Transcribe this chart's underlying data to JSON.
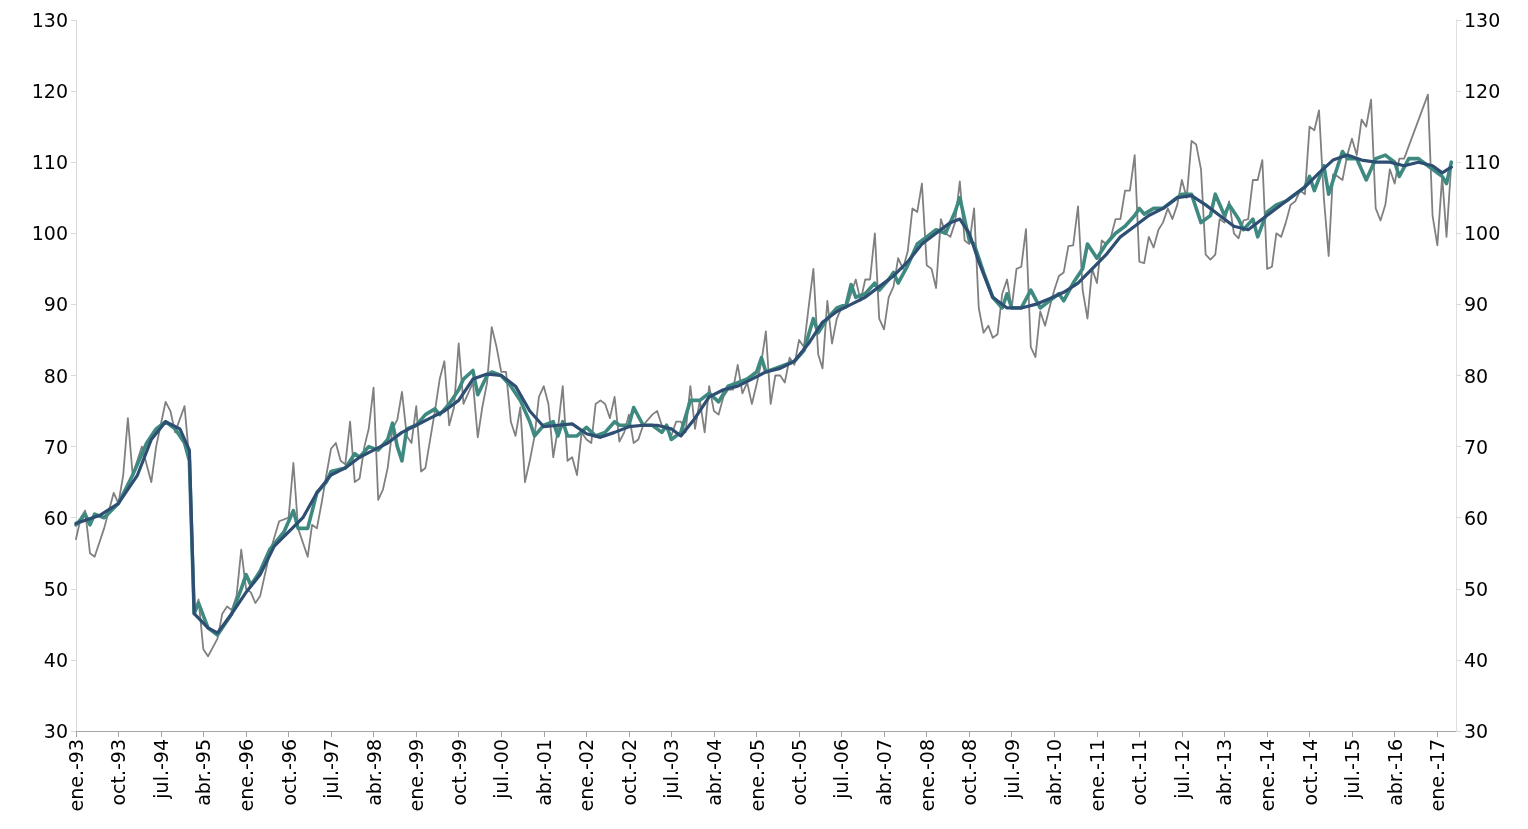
{
  "chart_data": {
    "type": "line",
    "xlim": [
      "1993-01",
      "2017-05"
    ],
    "ylim": [
      30,
      130
    ],
    "yticks": [
      30,
      40,
      50,
      60,
      70,
      80,
      90,
      100,
      110,
      120,
      130
    ],
    "y2lim": [
      30,
      130
    ],
    "y2ticks": [
      30,
      40,
      50,
      60,
      70,
      80,
      90,
      100,
      110,
      120,
      130
    ],
    "grid": false,
    "xticks": [
      {
        "value": "1993-01",
        "label": "ene.-93"
      },
      {
        "value": "1993-10",
        "label": "oct.-93"
      },
      {
        "value": "1994-07",
        "label": "jul.-94"
      },
      {
        "value": "1995-04",
        "label": "abr.-95"
      },
      {
        "value": "1996-01",
        "label": "ene.-96"
      },
      {
        "value": "1996-10",
        "label": "oct.-96"
      },
      {
        "value": "1997-07",
        "label": "jul.-97"
      },
      {
        "value": "1998-04",
        "label": "abr.-98"
      },
      {
        "value": "1999-01",
        "label": "ene.-99"
      },
      {
        "value": "1999-10",
        "label": "oct.-99"
      },
      {
        "value": "2000-07",
        "label": "jul.-00"
      },
      {
        "value": "2001-04",
        "label": "abr.-01"
      },
      {
        "value": "2002-01",
        "label": "ene.-02"
      },
      {
        "value": "2002-10",
        "label": "oct.-02"
      },
      {
        "value": "2003-07",
        "label": "jul.-03"
      },
      {
        "value": "2004-04",
        "label": "abr.-04"
      },
      {
        "value": "2005-01",
        "label": "ene.-05"
      },
      {
        "value": "2005-10",
        "label": "oct.-05"
      },
      {
        "value": "2006-07",
        "label": "jul.-06"
      },
      {
        "value": "2007-04",
        "label": "abr.-07"
      },
      {
        "value": "2008-01",
        "label": "ene.-08"
      },
      {
        "value": "2008-10",
        "label": "oct.-08"
      },
      {
        "value": "2009-07",
        "label": "jul.-09"
      },
      {
        "value": "2010-04",
        "label": "abr.-10"
      },
      {
        "value": "2011-01",
        "label": "ene.-11"
      },
      {
        "value": "2011-10",
        "label": "oct.-11"
      },
      {
        "value": "2012-07",
        "label": "jul.-12"
      },
      {
        "value": "2013-04",
        "label": "abr.-13"
      },
      {
        "value": "2014-01",
        "label": "ene.-14"
      },
      {
        "value": "2014-10",
        "label": "oct.-14"
      },
      {
        "value": "2015-07",
        "label": "jul.-15"
      },
      {
        "value": "2016-04",
        "label": "abr.-16"
      },
      {
        "value": "2017-01",
        "label": "ene.-17"
      }
    ],
    "series": [
      {
        "color": "#808080",
        "x": [
          "1993-01",
          "1993-02",
          "1993-03",
          "1993-04",
          "1993-05",
          "1993-07",
          "1993-09",
          "1993-10",
          "1993-11",
          "1993-12",
          "1994-01",
          "1994-03",
          "1994-05",
          "1994-06",
          "1994-08",
          "1994-09",
          "1994-10",
          "1994-12",
          "1995-01",
          "1995-02",
          "1995-03",
          "1995-04",
          "1995-05",
          "1995-07",
          "1995-08",
          "1995-09",
          "1995-10",
          "1995-11",
          "1995-12",
          "1996-01",
          "1996-02",
          "1996-03",
          "1996-04",
          "1996-06",
          "1996-08",
          "1996-10",
          "1996-11",
          "1996-12",
          "1997-02",
          "1997-03",
          "1997-04",
          "1997-05",
          "1997-06",
          "1997-07",
          "1997-08",
          "1997-09",
          "1997-10",
          "1997-11",
          "1997-12",
          "1998-01",
          "1998-02",
          "1998-03",
          "1998-04",
          "1998-05",
          "1998-06",
          "1998-07",
          "1998-08",
          "1998-09",
          "1998-10",
          "1998-11",
          "1998-12",
          "1999-01",
          "1999-02",
          "1999-03",
          "1999-05",
          "1999-06",
          "1999-07",
          "1999-08",
          "1999-09",
          "1999-10",
          "1999-11",
          "2000-01",
          "2000-02",
          "2000-03",
          "2000-04",
          "2000-05",
          "2000-06",
          "2000-07",
          "2000-08",
          "2000-09",
          "2000-10",
          "2000-11",
          "2000-12",
          "2001-01",
          "2001-02",
          "2001-03",
          "2001-04",
          "2001-05",
          "2001-06",
          "2001-07",
          "2001-08",
          "2001-09",
          "2001-10",
          "2001-11",
          "2001-12",
          "2002-01",
          "2002-02",
          "2002-03",
          "2002-04",
          "2002-05",
          "2002-06",
          "2002-07",
          "2002-08",
          "2002-09",
          "2002-10",
          "2002-11",
          "2002-12",
          "2003-01",
          "2003-03",
          "2003-04",
          "2003-05",
          "2003-06",
          "2003-07",
          "2003-08",
          "2003-09",
          "2003-10",
          "2003-11",
          "2003-12",
          "2004-01",
          "2004-02",
          "2004-03",
          "2004-04",
          "2004-05",
          "2004-06",
          "2004-07",
          "2004-08",
          "2004-09",
          "2004-10",
          "2004-11",
          "2004-12",
          "2005-01",
          "2005-02",
          "2005-03",
          "2005-04",
          "2005-05",
          "2005-06",
          "2005-07",
          "2005-08",
          "2005-09",
          "2005-10",
          "2005-11",
          "2005-12",
          "2006-01",
          "2006-02",
          "2006-03",
          "2006-04",
          "2006-05",
          "2006-06",
          "2006-07",
          "2006-08",
          "2006-09",
          "2006-10",
          "2006-11",
          "2006-12",
          "2007-01",
          "2007-02",
          "2007-03",
          "2007-04",
          "2007-05",
          "2007-06",
          "2007-07",
          "2007-08",
          "2007-09",
          "2007-10",
          "2007-11",
          "2007-12",
          "2008-01",
          "2008-02",
          "2008-03",
          "2008-04",
          "2008-05",
          "2008-06",
          "2008-07",
          "2008-08",
          "2008-09",
          "2008-10",
          "2008-11",
          "2008-12",
          "2009-01",
          "2009-02",
          "2009-03",
          "2009-04",
          "2009-05",
          "2009-06",
          "2009-07",
          "2009-08",
          "2009-09",
          "2009-10",
          "2009-11",
          "2009-12",
          "2010-01",
          "2010-02",
          "2010-03",
          "2010-04",
          "2010-05",
          "2010-06",
          "2010-07",
          "2010-08",
          "2010-09",
          "2010-10",
          "2010-11",
          "2010-12",
          "2011-01",
          "2011-02",
          "2011-03",
          "2011-04",
          "2011-05",
          "2011-06",
          "2011-07",
          "2011-08",
          "2011-09",
          "2011-10",
          "2011-11",
          "2011-12",
          "2012-01",
          "2012-02",
          "2012-03",
          "2012-04",
          "2012-05",
          "2012-06",
          "2012-07",
          "2012-08",
          "2012-09",
          "2012-10",
          "2012-11",
          "2012-12",
          "2013-01",
          "2013-02",
          "2013-03",
          "2013-04",
          "2013-05",
          "2013-06",
          "2013-07",
          "2013-08",
          "2013-09",
          "2013-10",
          "2013-11",
          "2013-12",
          "2014-01",
          "2014-02",
          "2014-03",
          "2014-04",
          "2014-05",
          "2014-06",
          "2014-07",
          "2014-08",
          "2014-09",
          "2014-10",
          "2014-11",
          "2014-12",
          "2015-01",
          "2015-02",
          "2015-03",
          "2015-04",
          "2015-05",
          "2015-06",
          "2015-07",
          "2015-08",
          "2015-09",
          "2015-10",
          "2015-11",
          "2015-12",
          "2016-01",
          "2016-02",
          "2016-03",
          "2016-04",
          "2016-05",
          "2016-06",
          "2016-11",
          "2016-12",
          "2017-01",
          "2017-02",
          "2017-03",
          "2017-04"
        ],
        "values": [
          57,
          60,
          61,
          55,
          54.5,
          58.5,
          63.5,
          62,
          66,
          74,
          66,
          70,
          65,
          70,
          76.3,
          75,
          72,
          75.7,
          68,
          46.5,
          48.5,
          41.5,
          40.5,
          43,
          46.5,
          47.5,
          47,
          49,
          55.5,
          50,
          49.5,
          48,
          49,
          55,
          59.5,
          60,
          67.7,
          58.5,
          54.5,
          59,
          58.5,
          62,
          66,
          69.7,
          70.5,
          68,
          67.5,
          73.5,
          65,
          65.5,
          70,
          72.5,
          78.3,
          62.5,
          64,
          67,
          72.5,
          73.8,
          77.7,
          71.5,
          70.5,
          75.7,
          66.5,
          67,
          75,
          79.5,
          82,
          73,
          75.5,
          84.5,
          76,
          79,
          71.3,
          75.5,
          79,
          86.8,
          84,
          80.5,
          80.5,
          73.5,
          71.5,
          75.5,
          65,
          68,
          71.5,
          77,
          78.5,
          76,
          68.5,
          72.5,
          78.5,
          68,
          68.5,
          66,
          72,
          71,
          70.5,
          76,
          76.5,
          76,
          74,
          77,
          70.7,
          72,
          74.5,
          70.5,
          71,
          73,
          74.5,
          75,
          73,
          72.5,
          71.5,
          73.5,
          73.5,
          72,
          78.5,
          72.5,
          76.5,
          72,
          78.5,
          75,
          74.5,
          77,
          78,
          78,
          81.5,
          77.5,
          79,
          76,
          78.8,
          82,
          86.2,
          76,
          80,
          80,
          79,
          82.5,
          81.5,
          85,
          84,
          89.5,
          95,
          83,
          81,
          90.5,
          84.5,
          88,
          89.5,
          89.5,
          91.5,
          93.5,
          90.5,
          93.5,
          93.5,
          100,
          88,
          86.5,
          91,
          92.5,
          96.5,
          95,
          97.5,
          103.5,
          103,
          107,
          95.5,
          95,
          92.3,
          102,
          100,
          99.5,
          101.5,
          107.3,
          99,
          98.5,
          103.5,
          89.5,
          86,
          87,
          85.3,
          85.8,
          91.5,
          93.5,
          89.5,
          95,
          95.3,
          100.6,
          84,
          82.6,
          89,
          87,
          89.5,
          92,
          94,
          94.5,
          98.2,
          98.3,
          103.8,
          92,
          88,
          95,
          93,
          99,
          98.5,
          99.5,
          102,
          102,
          106,
          106,
          111,
          96,
          95.8,
          99.5,
          98,
          100.5,
          101.5,
          103.5,
          102,
          104,
          107.5,
          105,
          113,
          112.5,
          109,
          97,
          96.3,
          97,
          102,
          101.5,
          104.5,
          100,
          99.3,
          101.8,
          102,
          107.5,
          107.5,
          110.3,
          95,
          95.3,
          100,
          99.5,
          101.5,
          104,
          104.5,
          106,
          105.5,
          115,
          114.5,
          117.3,
          105,
          96.8,
          108.3,
          108,
          107.5,
          111,
          113.3,
          111,
          116,
          115,
          118.8,
          103.5,
          101.8,
          104,
          109,
          107,
          110.5,
          110.5,
          119.5,
          102.5,
          98.3,
          108,
          99.5,
          110
        ]
      },
      {
        "color": "#3f8a80",
        "x": [
          "1993-01",
          "1993-03",
          "1993-04",
          "1993-05",
          "1993-07",
          "1993-10",
          "1994-01",
          "1994-04",
          "1994-06",
          "1994-08",
          "1994-10",
          "1994-12",
          "1995-01",
          "1995-02",
          "1995-03",
          "1995-05",
          "1995-07",
          "1995-10",
          "1995-12",
          "1996-01",
          "1996-02",
          "1996-04",
          "1996-06",
          "1996-09",
          "1996-11",
          "1996-12",
          "1997-02",
          "1997-04",
          "1997-06",
          "1997-07",
          "1997-10",
          "1997-12",
          "1998-01",
          "1998-03",
          "1998-05",
          "1998-07",
          "1998-08",
          "1998-09",
          "1998-10",
          "1998-11",
          "1999-01",
          "1999-03",
          "1999-05",
          "1999-06",
          "1999-08",
          "1999-10",
          "1999-11",
          "2000-01",
          "2000-02",
          "2000-04",
          "2000-05",
          "2000-07",
          "2000-09",
          "2000-11",
          "2001-01",
          "2001-02",
          "2001-04",
          "2001-06",
          "2001-07",
          "2001-08",
          "2001-09",
          "2001-11",
          "2002-01",
          "2002-03",
          "2002-05",
          "2002-07",
          "2002-08",
          "2002-10",
          "2002-11",
          "2003-01",
          "2003-03",
          "2003-05",
          "2003-06",
          "2003-07",
          "2003-09",
          "2003-11",
          "2004-01",
          "2004-03",
          "2004-05",
          "2004-07",
          "2004-09",
          "2004-11",
          "2005-01",
          "2005-02",
          "2005-03",
          "2005-05",
          "2005-07",
          "2005-09",
          "2005-11",
          "2006-01",
          "2006-02",
          "2006-04",
          "2006-06",
          "2006-08",
          "2006-09",
          "2006-10",
          "2006-12",
          "2007-02",
          "2007-03",
          "2007-05",
          "2007-06",
          "2007-07",
          "2007-09",
          "2007-11",
          "2008-01",
          "2008-03",
          "2008-05",
          "2008-07",
          "2008-08",
          "2008-10",
          "2008-11",
          "2009-01",
          "2009-03",
          "2009-05",
          "2009-06",
          "2009-07",
          "2009-09",
          "2009-11",
          "2010-01",
          "2010-03",
          "2010-05",
          "2010-06",
          "2010-08",
          "2010-10",
          "2010-11",
          "2011-01",
          "2011-03",
          "2011-05",
          "2011-07",
          "2011-09",
          "2011-10",
          "2011-11",
          "2012-01",
          "2012-03",
          "2012-05",
          "2012-07",
          "2012-09",
          "2012-11",
          "2013-01",
          "2013-02",
          "2013-04",
          "2013-05",
          "2013-07",
          "2013-08",
          "2013-10",
          "2013-11",
          "2014-01",
          "2014-03",
          "2014-05",
          "2014-07",
          "2014-09",
          "2014-10",
          "2014-11",
          "2015-01",
          "2015-02",
          "2015-04",
          "2015-05",
          "2015-06",
          "2015-08",
          "2015-10",
          "2015-12",
          "2016-02",
          "2016-04",
          "2016-05",
          "2016-07",
          "2016-09",
          "2016-11",
          "2017-01",
          "2017-02",
          "2017-03",
          "2017-04"
        ],
        "values": [
          59,
          60.5,
          59,
          60.5,
          60,
          62,
          66,
          70.5,
          72.5,
          73.5,
          72.5,
          70.5,
          68,
          46.5,
          48,
          44.5,
          43.5,
          46.5,
          50,
          52,
          50.5,
          52.5,
          55.5,
          58,
          61,
          58.5,
          58.5,
          63.5,
          65,
          66.5,
          67,
          69,
          68.5,
          70,
          69.5,
          71,
          73.3,
          70,
          68,
          72.5,
          73,
          74.5,
          75.3,
          74.5,
          76,
          78,
          79.5,
          80.7,
          77.3,
          80,
          80.5,
          80,
          78.5,
          76.5,
          73.5,
          71.5,
          73,
          73.5,
          71.5,
          73.5,
          71.5,
          71.5,
          72.7,
          71.5,
          72,
          73.5,
          73,
          73,
          75.5,
          73,
          73,
          72,
          73,
          71,
          72,
          76.5,
          76.5,
          77.5,
          76.3,
          78.5,
          79,
          79.5,
          80.5,
          82.5,
          80.5,
          81,
          81.5,
          82,
          83.5,
          88,
          86,
          88,
          89.5,
          90,
          92.8,
          91,
          91.5,
          93,
          92,
          93.5,
          94.5,
          93,
          95.5,
          98.5,
          99.5,
          100.5,
          100,
          103,
          105,
          99,
          98.5,
          94.5,
          91,
          89.5,
          91.5,
          89.5,
          89.5,
          92,
          89.5,
          90.5,
          91.5,
          90.5,
          93,
          95,
          98.5,
          96.5,
          98.5,
          100,
          101,
          102.5,
          103.5,
          102.7,
          103.5,
          103.5,
          104.5,
          105.5,
          105.5,
          101.5,
          102.5,
          105.5,
          102.5,
          104,
          102,
          100.5,
          102,
          99.5,
          103,
          104,
          104.5,
          105.5,
          106.5,
          108,
          106,
          109.5,
          105.5,
          109.5,
          111.5,
          110.5,
          110.5,
          107.5,
          110.5,
          111,
          110,
          108,
          110.5,
          110.5,
          109.5,
          108.5,
          108,
          107,
          110
        ]
      },
      {
        "color": "#2e4f73",
        "x": [
          "1993-01",
          "1993-06",
          "1993-10",
          "1994-02",
          "1994-05",
          "1994-08",
          "1994-11",
          "1995-01",
          "1995-02",
          "1995-05",
          "1995-07",
          "1995-10",
          "1996-01",
          "1996-04",
          "1996-07",
          "1996-10",
          "1997-01",
          "1997-04",
          "1997-07",
          "1997-10",
          "1998-01",
          "1998-04",
          "1998-07",
          "1998-10",
          "1999-01",
          "1999-04",
          "1999-07",
          "1999-10",
          "2000-01",
          "2000-04",
          "2000-07",
          "2000-10",
          "2001-01",
          "2001-04",
          "2001-07",
          "2001-10",
          "2002-01",
          "2002-04",
          "2002-07",
          "2002-10",
          "2003-01",
          "2003-04",
          "2003-07",
          "2003-09",
          "2003-12",
          "2004-03",
          "2004-06",
          "2004-09",
          "2004-12",
          "2005-03",
          "2005-06",
          "2005-09",
          "2005-12",
          "2006-03",
          "2006-06",
          "2006-09",
          "2006-12",
          "2007-03",
          "2007-06",
          "2007-09",
          "2007-12",
          "2008-03",
          "2008-06",
          "2008-08",
          "2008-10",
          "2008-12",
          "2009-03",
          "2009-06",
          "2009-09",
          "2009-12",
          "2010-03",
          "2010-06",
          "2010-09",
          "2010-12",
          "2011-03",
          "2011-06",
          "2011-09",
          "2011-12",
          "2012-03",
          "2012-06",
          "2012-09",
          "2012-12",
          "2013-03",
          "2013-06",
          "2013-09",
          "2013-12",
          "2014-03",
          "2014-06",
          "2014-09",
          "2014-12",
          "2015-03",
          "2015-06",
          "2015-09",
          "2015-12",
          "2016-03",
          "2016-06",
          "2016-09",
          "2016-12",
          "2017-02",
          "2017-04"
        ],
        "values": [
          59.2,
          60.3,
          62,
          66,
          71,
          73.5,
          72.5,
          69.5,
          46.5,
          44.5,
          43.8,
          46.5,
          49.5,
          52,
          56,
          58,
          60,
          63.5,
          66,
          67,
          68.5,
          69.5,
          70.5,
          72,
          73,
          74,
          75,
          76.5,
          79.5,
          80.2,
          80,
          78.5,
          75,
          72.8,
          73,
          73.2,
          71.8,
          71.3,
          72,
          72.8,
          73,
          73,
          72.5,
          71.5,
          74,
          77,
          78,
          78.5,
          79.5,
          80.5,
          81,
          82,
          84.5,
          87.5,
          89,
          90,
          91,
          92.5,
          94,
          96,
          98.5,
          100,
          101.5,
          102,
          100,
          96,
          91,
          89.5,
          89.5,
          90,
          90.8,
          91.7,
          93,
          95,
          97,
          99.5,
          101,
          102.5,
          103.5,
          105,
          105.3,
          104,
          102.5,
          101,
          100.5,
          102,
          103.5,
          105,
          106.5,
          108.5,
          110.3,
          111,
          110.3,
          110,
          110,
          109.5,
          110,
          109.5,
          108.5,
          109.3
        ]
      }
    ]
  }
}
